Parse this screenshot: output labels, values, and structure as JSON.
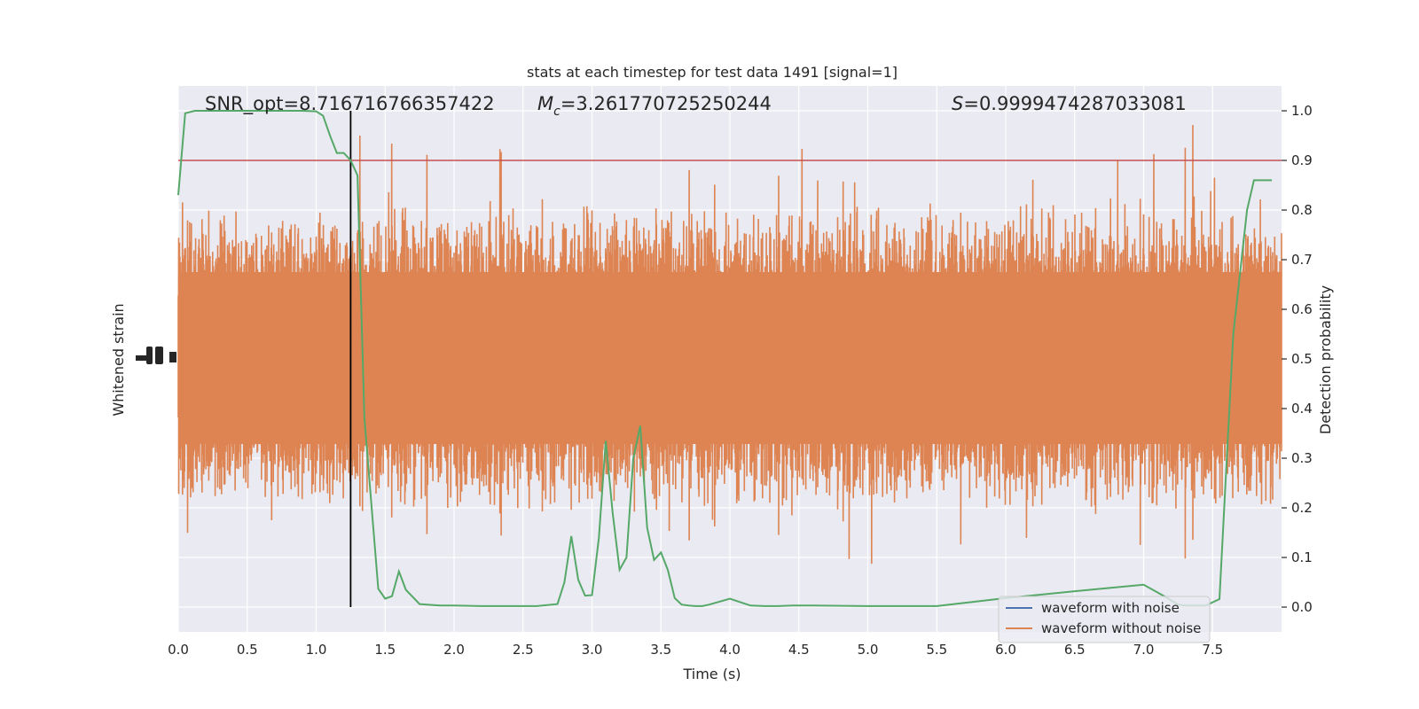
{
  "chart_data": {
    "type": "line",
    "title": "stats at each timestep for test data 1491 [signal=1]",
    "xlabel": "Time (s)",
    "ylabel_left": "Whitened strain",
    "ylabel_right": "Detection probability",
    "xlim": [
      0.0,
      8.0
    ],
    "ylim_right": [
      -0.05,
      1.05
    ],
    "x_ticks": [
      "0.0",
      "0.5",
      "1.0",
      "1.5",
      "2.0",
      "2.5",
      "3.0",
      "3.5",
      "4.0",
      "4.5",
      "5.0",
      "5.5",
      "6.0",
      "6.5",
      "7.0",
      "7.5"
    ],
    "x_tick_values": [
      0.0,
      0.5,
      1.0,
      1.5,
      2.0,
      2.5,
      3.0,
      3.5,
      4.0,
      4.5,
      5.0,
      5.5,
      6.0,
      6.5,
      7.0,
      7.5
    ],
    "y_ticks_right": [
      "0.0",
      "0.1",
      "0.2",
      "0.3",
      "0.4",
      "0.5",
      "0.6",
      "0.7",
      "0.8",
      "0.9",
      "1.0"
    ],
    "y_tick_values_right": [
      0.0,
      0.1,
      0.2,
      0.3,
      0.4,
      0.5,
      0.6,
      0.7,
      0.8,
      0.9,
      1.0
    ],
    "annotations": {
      "snr": "SNR_opt=8.716716766357422",
      "mc_symbol": "M",
      "mc_subscript": "c",
      "mc_value": "=3.261770725250244",
      "s_symbol": "S",
      "s_value": "=0.9999474287033081"
    },
    "threshold": 0.9,
    "marker_time": 1.25,
    "legend": [
      "waveform with noise",
      "waveform without noise"
    ],
    "legend_position": "lower-right",
    "grid": true,
    "series": [
      {
        "name": "Detection probability",
        "color": "#55a868",
        "x": [
          0.0,
          0.05,
          0.12,
          0.2,
          0.3,
          0.4,
          0.5,
          0.6,
          0.7,
          0.8,
          0.9,
          1.0,
          1.05,
          1.1,
          1.15,
          1.2,
          1.25,
          1.3,
          1.35,
          1.45,
          1.5,
          1.55,
          1.6,
          1.65,
          1.75,
          1.9,
          2.0,
          2.2,
          2.4,
          2.6,
          2.75,
          2.8,
          2.85,
          2.9,
          2.95,
          3.0,
          3.05,
          3.1,
          3.15,
          3.2,
          3.25,
          3.3,
          3.35,
          3.4,
          3.45,
          3.5,
          3.55,
          3.6,
          3.65,
          3.7,
          3.75,
          3.8,
          3.85,
          4.0,
          4.15,
          4.25,
          4.3,
          4.35,
          4.45,
          4.6,
          5.0,
          5.5,
          6.0,
          6.5,
          7.0,
          7.15,
          7.25,
          7.3,
          7.35,
          7.45,
          7.55,
          7.65,
          7.75,
          7.8,
          7.88,
          7.93
        ],
        "y": [
          0.83,
          0.995,
          1.0,
          1.0,
          1.0,
          1.0,
          1.0,
          1.0,
          1.0,
          1.0,
          1.0,
          0.999,
          0.99,
          0.95,
          0.915,
          0.915,
          0.9,
          0.87,
          0.38,
          0.037,
          0.017,
          0.022,
          0.072,
          0.035,
          0.006,
          0.003,
          0.003,
          0.002,
          0.002,
          0.002,
          0.006,
          0.05,
          0.143,
          0.055,
          0.023,
          0.024,
          0.14,
          0.335,
          0.19,
          0.075,
          0.1,
          0.3,
          0.365,
          0.16,
          0.095,
          0.11,
          0.075,
          0.018,
          0.005,
          0.003,
          0.002,
          0.002,
          0.005,
          0.017,
          0.003,
          0.002,
          0.002,
          0.002,
          0.003,
          0.003,
          0.002,
          0.002,
          0.018,
          0.032,
          0.045,
          0.022,
          0.005,
          0.003,
          0.003,
          0.003,
          0.016,
          0.55,
          0.8,
          0.86,
          0.86,
          0.86
        ]
      }
    ]
  },
  "colors": {
    "plot_bg": "#eaeaf2",
    "grid": "#ffffff",
    "noise": "#dd8452",
    "noise_free": "#4c72b0",
    "probability": "#55a868",
    "threshold": "#c44e52",
    "marker": "#000000",
    "text": "#262626"
  }
}
